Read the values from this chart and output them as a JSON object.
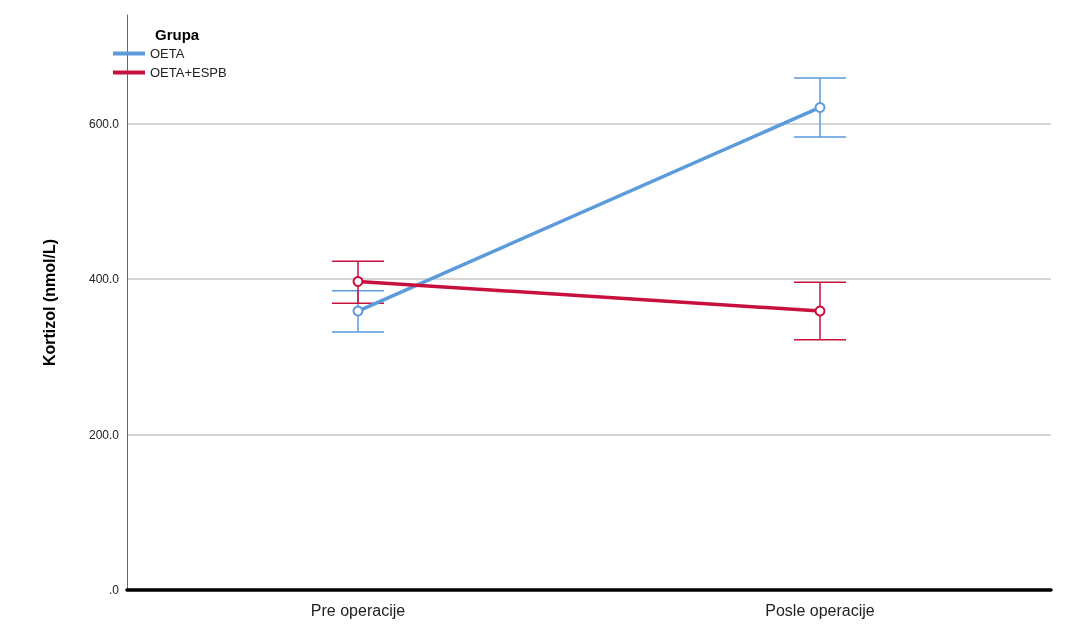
{
  "chart_data": {
    "type": "line",
    "ylabel": "Kortizol (nmol/L)",
    "legend_title": "Grupa",
    "categories": [
      "Pre operacije",
      "Posle operacije"
    ],
    "series": [
      {
        "name": "OETA",
        "color": "#5b9bdc",
        "values": [
          359,
          621
        ],
        "errors": [
          [
            332,
            385
          ],
          [
            583,
            659
          ]
        ]
      },
      {
        "name": "OETA+ESPB",
        "color": "#c8103e",
        "values": [
          397,
          359
        ],
        "errors": [
          [
            369,
            423
          ],
          [
            322,
            396
          ]
        ]
      }
    ],
    "ylim": [
      0,
      740
    ],
    "yticks": [
      {
        "value": 0,
        "label": ".0"
      },
      {
        "value": 200,
        "label": "200.0"
      },
      {
        "value": 400,
        "label": "400.0"
      },
      {
        "value": 600,
        "label": "600.0"
      }
    ],
    "grid": "y",
    "legend": "top left",
    "marker": "circle",
    "line_style": "solid"
  }
}
